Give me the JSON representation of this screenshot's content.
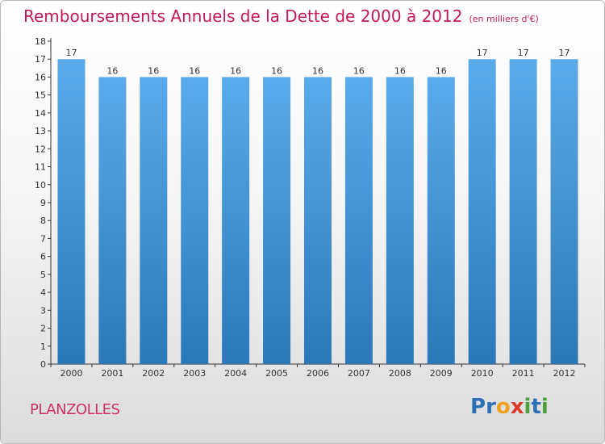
{
  "title": "Remboursements Annuels de la Dette de 2000 à 2012",
  "unit": "(en milliers d'€)",
  "town": "PLANZOLLES",
  "logo": {
    "letters": [
      "P",
      "r",
      "o",
      "x",
      "i",
      "t",
      "i"
    ],
    "colors": [
      "#2f6fb5",
      "#2f6fb5",
      "#f0a020",
      "#d93b2b",
      "#4aa03a",
      "#2f6fb5",
      "#4aa03a"
    ]
  },
  "colors": {
    "title": "#c2185b",
    "bar_top": "#5aabeb",
    "bar_bottom": "#2b78b8"
  },
  "chart_data": {
    "type": "bar",
    "categories": [
      "2000",
      "2001",
      "2002",
      "2003",
      "2004",
      "2005",
      "2006",
      "2007",
      "2008",
      "2009",
      "2010",
      "2011",
      "2012"
    ],
    "values": [
      17,
      16,
      16,
      16,
      16,
      16,
      16,
      16,
      16,
      16,
      17,
      17,
      17
    ],
    "ylim": [
      0,
      18
    ],
    "yticks": [
      "0",
      "1",
      "2",
      "3",
      "4",
      "5",
      "6",
      "7",
      "8",
      "9",
      "10",
      "11",
      "12",
      "13",
      "14",
      "15",
      "16",
      "17",
      "18"
    ],
    "grid": false
  }
}
